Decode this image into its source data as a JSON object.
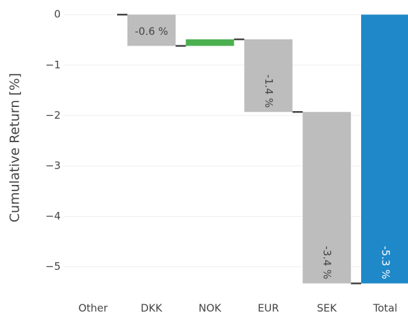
{
  "chart_data": {
    "type": "waterfall",
    "categories": [
      "Other",
      "DKK",
      "NOK",
      "EUR",
      "SEK",
      "Total"
    ],
    "measures": [
      "relative",
      "relative",
      "relative",
      "relative",
      "relative",
      "total"
    ],
    "values": [
      0,
      -0.62,
      0.13,
      -1.44,
      -3.4,
      -5.33
    ],
    "value_labels": [
      null,
      "-0.6 %",
      null,
      "-1.4 %",
      "-3.4 %",
      "-5.3 %"
    ],
    "colors": {
      "increase": "#4caf50",
      "decrease": "#bdbdbd",
      "total": "#1f88c8",
      "connector": "#444444"
    },
    "y_label": "Cumulative Return [%]",
    "ylim": [
      -5.56,
      0.29
    ],
    "yticks": [
      0,
      {
        "value": -1,
        "label": "−1"
      },
      {
        "value": -2,
        "label": "−2"
      },
      {
        "value": -3,
        "label": "−3"
      },
      {
        "value": -4,
        "label": "−4"
      },
      {
        "value": -5,
        "label": "−5"
      }
    ],
    "grid": true
  }
}
